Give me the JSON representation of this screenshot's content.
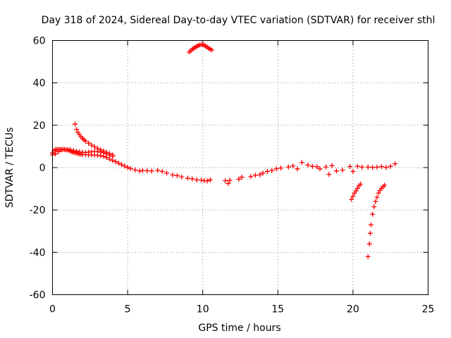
{
  "chart_data": {
    "type": "scatter",
    "title": "Day 318 of 2024, Sidereal Day-to-day VTEC variation (SDTVAR) for receiver sthl",
    "xlabel": "GPS time / hours",
    "ylabel": "SDTVAR / TECUs",
    "xlim": [
      0,
      25
    ],
    "ylim": [
      -60,
      60
    ],
    "xticks": [
      0,
      5,
      10,
      15,
      20,
      25
    ],
    "yticks": [
      -60,
      -40,
      -20,
      0,
      20,
      40,
      60
    ],
    "xtick_labels": [
      "0",
      "5",
      "10",
      "15",
      "20",
      "25"
    ],
    "ytick_labels": [
      "-60",
      "-40",
      "-20",
      "0",
      "20",
      "40",
      "60"
    ],
    "grid": true,
    "marker": "+",
    "color": "#ff0000",
    "series": [
      {
        "name": "main-band",
        "x": [
          0.0,
          0.1,
          0.2,
          0.3,
          0.4,
          0.5,
          0.6,
          0.7,
          0.8,
          0.9,
          1.0,
          1.1,
          1.2,
          1.3,
          1.4,
          1.5,
          1.6,
          1.7,
          1.8,
          1.9,
          2.0,
          2.2,
          2.4,
          2.6,
          2.8,
          3.0,
          3.2,
          3.4,
          3.6,
          3.8,
          4.0,
          4.2,
          4.4,
          4.6,
          4.8,
          5.0,
          5.2,
          5.5,
          5.8,
          6.0,
          6.3,
          6.6,
          7.0,
          7.3,
          7.6,
          8.0,
          8.3,
          8.6,
          9.0,
          9.3,
          9.6,
          9.9,
          10.1,
          10.3,
          10.5
        ],
        "y": [
          7,
          8,
          8.5,
          8.6,
          8.5,
          8.6,
          8.4,
          8.6,
          8.5,
          8.3,
          8.4,
          8.2,
          7.8,
          7.4,
          7.2,
          7,
          6.9,
          6.6,
          6.4,
          6.3,
          6.2,
          6.1,
          6,
          6,
          5.9,
          5.8,
          5.6,
          5.3,
          4.8,
          4,
          3.4,
          2.8,
          2.1,
          1.4,
          0.7,
          0.1,
          -0.5,
          -1.1,
          -1.6,
          -1.4,
          -1.5,
          -1.6,
          -1.3,
          -1.8,
          -2.6,
          -3.5,
          -3.8,
          -4.4,
          -5,
          -5.3,
          -5.8,
          -5.9,
          -6.2,
          -6.3,
          -5.8
        ]
      },
      {
        "name": "upper-band",
        "x": [
          0.0,
          0.2,
          0.4,
          0.6,
          0.8,
          1.0,
          1.2,
          1.4,
          1.6,
          1.8,
          2.0,
          2.2,
          2.4,
          2.6,
          2.8,
          3.0,
          3.2,
          3.4,
          3.6,
          3.8,
          4.0
        ],
        "y": [
          6,
          6.5,
          7.5,
          8.5,
          8.6,
          8.5,
          8.4,
          8,
          7.7,
          7.4,
          7.2,
          7.1,
          7.3,
          7.5,
          7.6,
          7.6,
          7.3,
          7,
          6.5,
          5.9,
          5.2
        ]
      },
      {
        "name": "rising-arc-start",
        "x": [
          1.5,
          1.6,
          1.7,
          1.8,
          1.9,
          2.0,
          2.1,
          2.2,
          2.4,
          2.6,
          2.8,
          3.0,
          3.2,
          3.4,
          3.6,
          3.8,
          4.0
        ],
        "y": [
          20.5,
          18,
          16.5,
          15.5,
          14.5,
          13.8,
          13.1,
          12.5,
          11.5,
          10.6,
          9.8,
          9,
          8.4,
          7.8,
          7.2,
          6.6,
          6
        ]
      },
      {
        "name": "peak-arc",
        "x": [
          9.1,
          9.2,
          9.3,
          9.4,
          9.5,
          9.6,
          9.7,
          9.8,
          9.9,
          10.0,
          10.1,
          10.2,
          10.3,
          10.4,
          10.5,
          10.6
        ],
        "y": [
          54.5,
          55.2,
          55.8,
          56.3,
          56.8,
          57.2,
          57.6,
          57.9,
          58.1,
          58.1,
          57.8,
          57.3,
          56.8,
          56.3,
          55.9,
          55.5
        ]
      },
      {
        "name": "gap-segments",
        "x": [
          11.5,
          11.7,
          11.8,
          12.4,
          12.6,
          13.2,
          13.5,
          13.8,
          14.0,
          14.3,
          14.6,
          14.9,
          15.2,
          15.7,
          16.0,
          16.3,
          16.6,
          17.0,
          17.3,
          17.6,
          17.8,
          18.2,
          18.4,
          18.6,
          18.9,
          19.3,
          19.8,
          20.0,
          20.3,
          20.6,
          21.0,
          21.3,
          21.6,
          21.9,
          22.2,
          22.5,
          22.8
        ],
        "y": [
          -6.2,
          -7.5,
          -6,
          -5.5,
          -4.5,
          -4.2,
          -3.6,
          -3.4,
          -2.6,
          -1.8,
          -1.4,
          -0.6,
          -0.2,
          0.3,
          0.8,
          -0.6,
          2.4,
          1.2,
          0.6,
          0.4,
          -0.6,
          0.3,
          -3.2,
          0.9,
          -1.6,
          -1.2,
          0.5,
          -1.8,
          0.6,
          0.2,
          0.3,
          0.1,
          0.2,
          0.5,
          0.1,
          0.6,
          1.8
        ]
      },
      {
        "name": "dip-arc-20h",
        "x": [
          19.9,
          20.0,
          20.1,
          20.2,
          20.3,
          20.4,
          20.5
        ],
        "y": [
          -15,
          -13.5,
          -12,
          -11,
          -9.8,
          -8.6,
          -7.8
        ]
      },
      {
        "name": "dip-arc-21h",
        "x": [
          21.0,
          21.1,
          21.15,
          21.2,
          21.3,
          21.4,
          21.5,
          21.6,
          21.7,
          21.8,
          21.9,
          22.0,
          22.1
        ],
        "y": [
          -42,
          -36,
          -31,
          -27,
          -22,
          -18.5,
          -16,
          -14,
          -12,
          -10.8,
          -9.8,
          -9,
          -8.3
        ]
      }
    ]
  }
}
